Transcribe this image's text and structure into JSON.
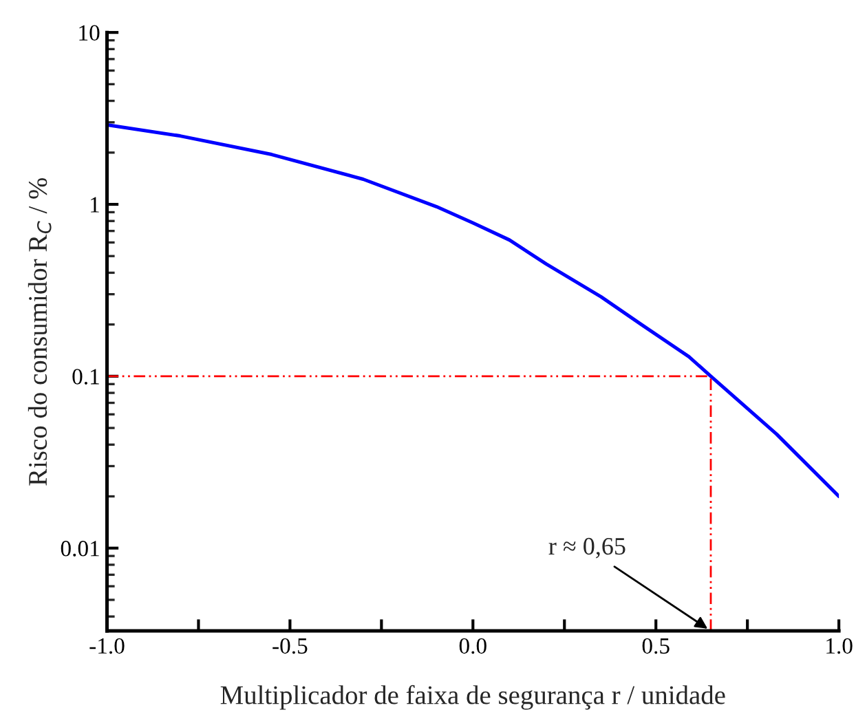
{
  "chart_data": {
    "type": "line",
    "xlabel": "Multiplicador de faixa de segurança r / unidade",
    "ylabel": "Risco do consumidor R$_{C}$ / %",
    "x": [
      -1.0,
      -0.8,
      -0.55,
      -0.3,
      -0.1,
      0.0,
      0.1,
      0.2,
      0.35,
      0.46,
      0.59,
      0.65,
      0.83,
      1.0
    ],
    "series": [
      {
        "color": "#0000ff",
        "values": [
          2.9,
          2.5,
          1.95,
          1.4,
          0.97,
          0.78,
          0.62,
          0.45,
          0.29,
          0.2,
          0.13,
          0.1,
          0.046,
          0.02
        ]
      }
    ],
    "log": "y",
    "xlim": [
      -1.0,
      1.0
    ],
    "xticks": [
      {
        "value": -1.0,
        "label": "-1.0"
      },
      {
        "value": -0.75,
        "label": null
      },
      {
        "value": -0.5,
        "label": "-0.5"
      },
      {
        "value": -0.25,
        "label": null
      },
      {
        "value": 0.0,
        "label": "0.0"
      },
      {
        "value": 0.25,
        "label": null
      },
      {
        "value": 0.5,
        "label": "0.5"
      },
      {
        "value": 0.75,
        "label": null
      },
      {
        "value": 1.0,
        "label": "1.0"
      }
    ],
    "ylim": [
      0.0033,
      10
    ],
    "yticks": [
      {
        "value": 0.01,
        "label": "0.01"
      },
      {
        "value": 0.1,
        "label": "0.1"
      },
      1,
      10
    ],
    "ref_lines": [
      {
        "axis": "y",
        "value": 0.1,
        "color": "#ff0000",
        "line_style": "dashed"
      },
      {
        "axis": "x",
        "value": 0.65,
        "color": "#ff0000",
        "line_style": "dashed"
      }
    ],
    "annotations": [
      {
        "text": "r ≈ 0,65",
        "x": 0.65,
        "y": 0.0033
      }
    ],
    "grid": false,
    "legend": false,
    "marker": "none",
    "line_style": "solid"
  }
}
